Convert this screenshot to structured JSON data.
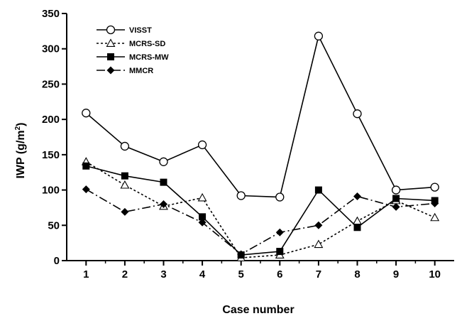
{
  "chart_data": {
    "type": "line",
    "xlabel": "Case number",
    "ylabel": "IWP (g/m",
    "ylabel_sup": "2",
    "ylabel_close": ")",
    "x": [
      1,
      2,
      3,
      4,
      5,
      6,
      7,
      8,
      9,
      10
    ],
    "xlim": [
      0.5,
      10.5
    ],
    "ylim": [
      0,
      350
    ],
    "yticks": [
      0,
      50,
      100,
      150,
      200,
      250,
      300,
      350
    ],
    "grid": false,
    "legend_position": "top-left",
    "series": [
      {
        "name": "VISST",
        "marker": "circle-open",
        "line": "solid",
        "values": [
          209,
          162,
          140,
          164,
          92,
          90,
          318,
          208,
          100,
          104
        ]
      },
      {
        "name": "MCRS-SD",
        "marker": "triangle-open",
        "line": "dotted",
        "values": [
          140,
          107,
          77,
          89,
          4,
          8,
          23,
          56,
          85,
          61
        ]
      },
      {
        "name": "MCRS-MW",
        "marker": "square-filled",
        "line": "solid",
        "values": [
          134,
          120,
          111,
          62,
          8,
          13,
          100,
          47,
          88,
          85
        ]
      },
      {
        "name": "MMCR",
        "marker": "diamond-filled",
        "line": "dashdot",
        "values": [
          101,
          69,
          80,
          54,
          9,
          40,
          50,
          91,
          76,
          81
        ]
      }
    ]
  }
}
